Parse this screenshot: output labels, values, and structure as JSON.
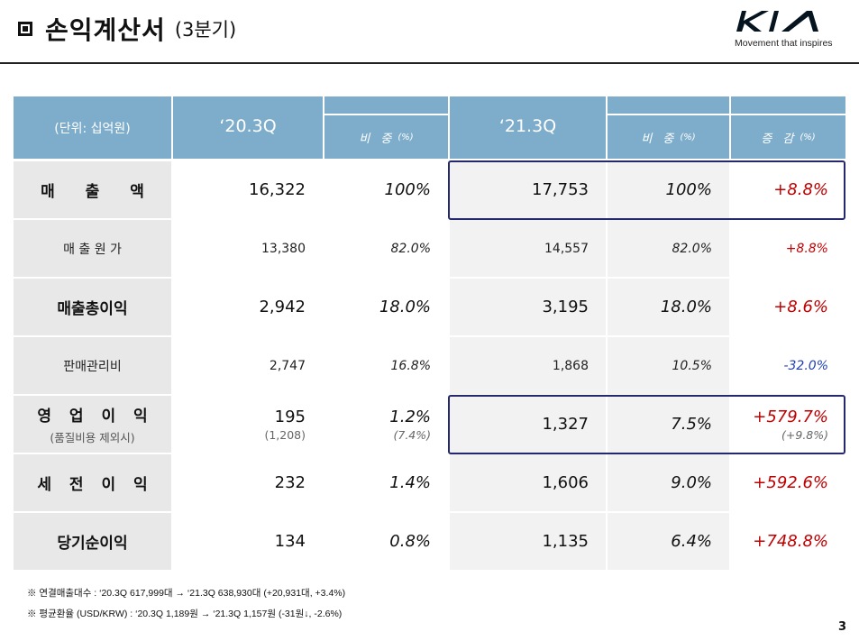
{
  "header": {
    "title": "손익계산서",
    "subtitle": "(3분기)",
    "brand_tagline": "Movement that inspires"
  },
  "table": {
    "unit_label": "(단위: 십억원)",
    "periods": [
      "‘20.3Q",
      "‘21.3Q"
    ],
    "share_label": "비 중",
    "change_label": "증 감",
    "pct_unit": "(%)",
    "rows": [
      {
        "label": "매 출 액",
        "sub": "",
        "v20": "16,322",
        "s20": "100%",
        "v21": "17,753",
        "s21": "100%",
        "chg": "+8.8%"
      },
      {
        "label": "매 출 원 가",
        "sub": "",
        "v20": "13,380",
        "s20": "82.0%",
        "v21": "14,557",
        "s21": "82.0%",
        "chg": "+8.8%"
      },
      {
        "label": "매출총이익",
        "sub": "",
        "v20": "2,942",
        "s20": "18.0%",
        "v21": "3,195",
        "s21": "18.0%",
        "chg": "+8.6%"
      },
      {
        "label": "판매관리비",
        "sub": "",
        "v20": "2,747",
        "s20": "16.8%",
        "v21": "1,868",
        "s21": "10.5%",
        "chg": "-32.0%"
      },
      {
        "label": "영 업 이 익",
        "sub": "(품질비용 제외시)",
        "v20": "195",
        "v20_sub": "(1,208)",
        "s20": "1.2%",
        "s20_sub": "(7.4%)",
        "v21": "1,327",
        "s21": "7.5%",
        "chg": "+579.7%",
        "chg_sub": "(+9.8%)"
      },
      {
        "label": "세 전 이 익",
        "sub": "",
        "v20": "232",
        "s20": "1.4%",
        "v21": "1,606",
        "s21": "9.0%",
        "chg": "+592.6%"
      },
      {
        "label": "당기순이익",
        "sub": "",
        "v20": "134",
        "s20": "0.8%",
        "v21": "1,135",
        "s21": "6.4%",
        "chg": "+748.8%"
      }
    ]
  },
  "notes": [
    "※  연결매출대수 : ‘20.3Q 617,999대  →  ‘21.3Q 638,930대  (+20,931대, +3.4%)",
    "※  평균환율 (USD/KRW) : ‘20.3Q 1,189원  →  ‘21.3Q 1,157원  (-31원↓, -2.6%)"
  ],
  "page_number": "3",
  "colors": {
    "header_blue": "#7eadcb",
    "label_gray": "#e8e8e8",
    "positive_red": "#c00000",
    "negative_blue": "#1f3fb5",
    "frame_navy": "#26286e"
  }
}
